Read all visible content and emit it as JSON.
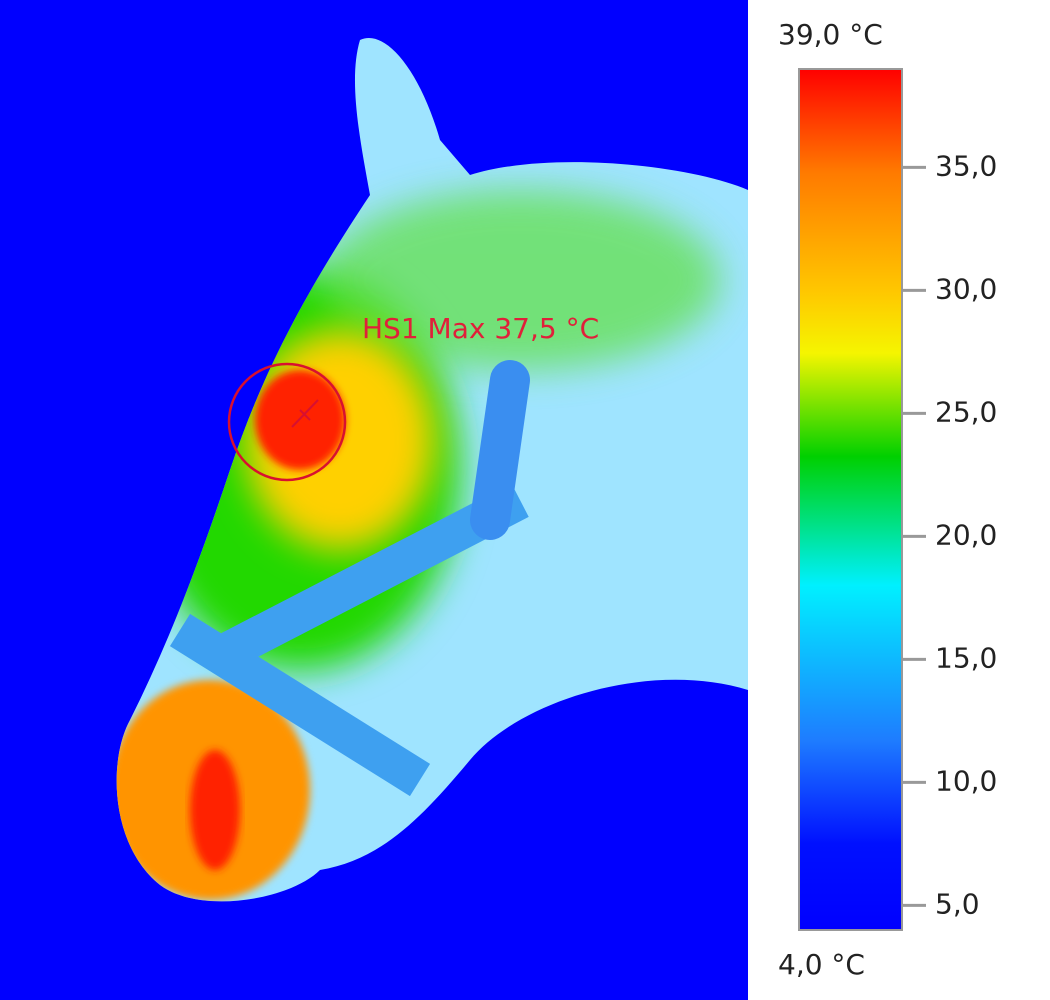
{
  "annotation": "HS1 Max 37,5 °C",
  "colorbar": {
    "max": {
      "value": 39,
      "label": "39,0 °C"
    },
    "min": {
      "value": 4,
      "label": "4,0 °C"
    },
    "ticks": [
      {
        "value": 35,
        "label": "35,0"
      },
      {
        "value": 30,
        "label": "30,0"
      },
      {
        "value": 25,
        "label": "25,0"
      },
      {
        "value": 20,
        "label": "20,0"
      },
      {
        "value": 15,
        "label": "15,0"
      },
      {
        "value": 10,
        "label": "10,0"
      },
      {
        "value": 5,
        "label": "5,0"
      }
    ]
  }
}
